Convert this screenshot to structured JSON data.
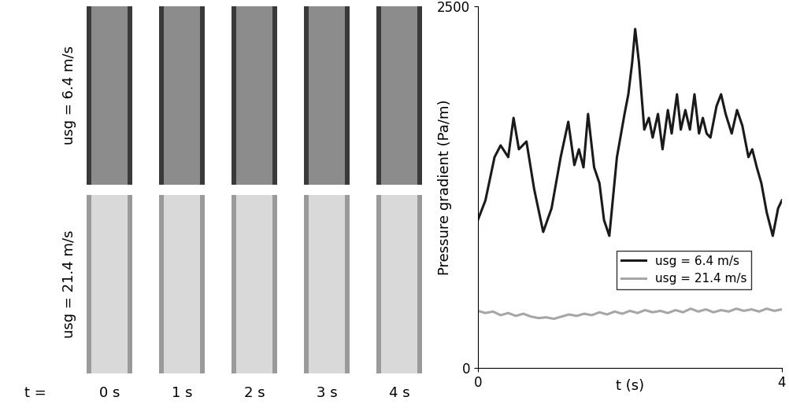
{
  "chart_data": {
    "type": "line",
    "x_label": "t (s)",
    "y_label": "Pressure gradient (Pa/m)",
    "xlim": [
      0,
      4
    ],
    "xticks": [
      0,
      4
    ],
    "ylim": [
      0,
      2500
    ],
    "yticks": [
      0,
      2500
    ],
    "legend": "lower right",
    "series": [
      {
        "name": "usg = 6.4 m/s",
        "color": "#1a1a1a",
        "x": [
          0,
          0.1,
          0.22,
          0.3,
          0.4,
          0.47,
          0.54,
          0.64,
          0.74,
          0.86,
          0.97,
          1.09,
          1.19,
          1.27,
          1.33,
          1.39,
          1.45,
          1.53,
          1.6,
          1.66,
          1.73,
          1.83,
          1.93,
          1.98,
          2.03,
          2.07,
          2.12,
          2.19,
          2.25,
          2.3,
          2.37,
          2.43,
          2.5,
          2.55,
          2.62,
          2.67,
          2.73,
          2.79,
          2.85,
          2.91,
          2.96,
          3.01,
          3.06,
          3.14,
          3.2,
          3.26,
          3.34,
          3.41,
          3.48,
          3.56,
          3.61,
          3.67,
          3.73,
          3.8,
          3.88,
          3.95,
          4.0
        ],
        "values": [
          1022,
          1158,
          1457,
          1538,
          1457,
          1728,
          1511,
          1565,
          1239,
          940,
          1103,
          1457,
          1701,
          1402,
          1511,
          1386,
          1755,
          1386,
          1277,
          1022,
          913,
          1457,
          1755,
          1891,
          2109,
          2342,
          2109,
          1647,
          1728,
          1592,
          1755,
          1511,
          1782,
          1620,
          1891,
          1647,
          1782,
          1647,
          1891,
          1620,
          1728,
          1620,
          1592,
          1809,
          1891,
          1755,
          1620,
          1782,
          1674,
          1457,
          1511,
          1386,
          1277,
          1076,
          913,
          1103,
          1158
        ]
      },
      {
        "name": "usg = 21.4 m/s",
        "color": "#a6a6a6",
        "x": [
          0,
          0.1,
          0.2,
          0.3,
          0.4,
          0.5,
          0.6,
          0.7,
          0.8,
          0.9,
          1.0,
          1.1,
          1.2,
          1.3,
          1.4,
          1.5,
          1.6,
          1.7,
          1.8,
          1.9,
          2.0,
          2.1,
          2.2,
          2.3,
          2.4,
          2.5,
          2.6,
          2.7,
          2.8,
          2.9,
          3.0,
          3.1,
          3.2,
          3.3,
          3.4,
          3.5,
          3.6,
          3.7,
          3.8,
          3.9,
          4.0
        ],
        "values": [
          395,
          380,
          390,
          365,
          380,
          360,
          375,
          355,
          345,
          350,
          340,
          355,
          370,
          360,
          375,
          365,
          385,
          370,
          390,
          375,
          395,
          380,
          400,
          385,
          395,
          380,
          400,
          385,
          410,
          390,
          405,
          385,
          400,
          390,
          410,
          395,
          405,
          390,
          410,
          395,
          405
        ]
      }
    ]
  },
  "image_panel": {
    "row_labels": [
      "usg = 6.4 m/s",
      "usg = 21.4 m/s"
    ],
    "column_prefix": "t =",
    "column_labels": [
      "0 s",
      "1 s",
      "2 s",
      "3 s",
      "4 s"
    ]
  }
}
